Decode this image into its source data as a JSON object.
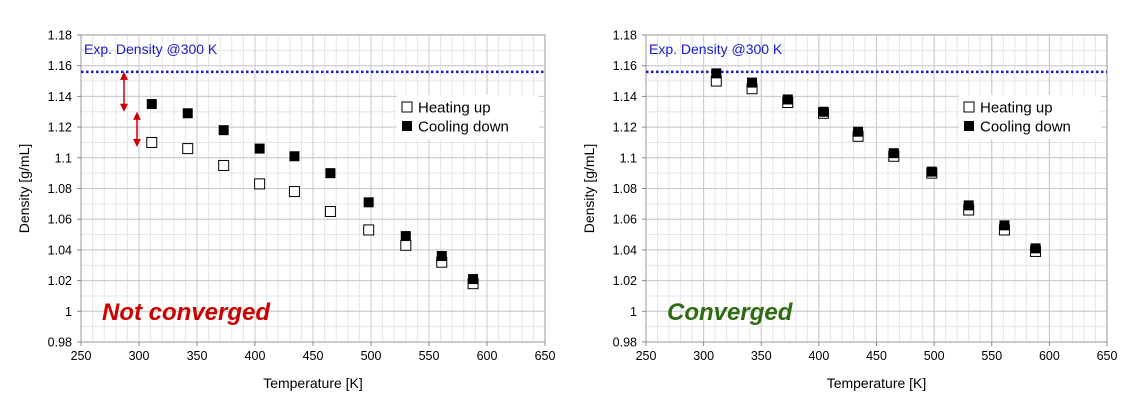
{
  "colors": {
    "reference_line": "#1a1acc",
    "not_converged": "#cc0000",
    "converged": "#2e6b12",
    "arrow": "#cc0000",
    "grid": "#c8c8c8"
  },
  "chart_data": [
    {
      "type": "scatter",
      "xlabel": "Temperature [K]",
      "ylabel": "Density [g/mL]",
      "xlim": [
        250,
        650
      ],
      "ylim": [
        0.98,
        1.18
      ],
      "x_ticks": [
        250,
        300,
        350,
        400,
        450,
        500,
        550,
        600,
        650
      ],
      "x_tick_labels": [
        "250",
        "300",
        "350",
        "400",
        "450",
        "500",
        "550",
        "600",
        "650"
      ],
      "y_ticks": [
        0.98,
        1.0,
        1.02,
        1.04,
        1.06,
        1.08,
        1.1,
        1.12,
        1.14,
        1.16,
        1.18
      ],
      "y_tick_labels": [
        "0.98",
        "1",
        "1.02",
        "1.04",
        "1.06",
        "1.08",
        "1.1",
        "1.12",
        "1.14",
        "1.16",
        "1.18"
      ],
      "grid": true,
      "legend_position": "top-right",
      "reference_line": {
        "y": 1.156,
        "label": "Exp. Density @300 K",
        "style": "dotted"
      },
      "status_label": "Not converged",
      "status_color": "not_converged",
      "annotation": "double-headed arrows indicating the gap below the experimental density",
      "series": [
        {
          "name": "Heating up",
          "marker": "open-square",
          "x": [
            311,
            342,
            373,
            404,
            434,
            465,
            498,
            530,
            561,
            588
          ],
          "y": [
            1.11,
            1.106,
            1.095,
            1.083,
            1.078,
            1.065,
            1.053,
            1.043,
            1.032,
            1.018
          ]
        },
        {
          "name": "Cooling down",
          "marker": "filled-square",
          "x": [
            311,
            342,
            373,
            404,
            434,
            465,
            498,
            530,
            561,
            588
          ],
          "y": [
            1.135,
            1.129,
            1.118,
            1.106,
            1.101,
            1.09,
            1.071,
            1.049,
            1.036,
            1.021
          ]
        }
      ]
    },
    {
      "type": "scatter",
      "xlabel": "Temperature [K]",
      "ylabel": "Density [g/mL]",
      "xlim": [
        250,
        650
      ],
      "ylim": [
        0.98,
        1.18
      ],
      "x_ticks": [
        250,
        300,
        350,
        400,
        450,
        500,
        550,
        600,
        650
      ],
      "x_tick_labels": [
        "250",
        "300",
        "350",
        "400",
        "450",
        "500",
        "550",
        "600",
        "650"
      ],
      "y_ticks": [
        0.98,
        1.0,
        1.02,
        1.04,
        1.06,
        1.08,
        1.1,
        1.12,
        1.14,
        1.16,
        1.18
      ],
      "y_tick_labels": [
        "0.98",
        "1",
        "1.02",
        "1.04",
        "1.06",
        "1.08",
        "1.1",
        "1.12",
        "1.14",
        "1.16",
        "1.18"
      ],
      "grid": true,
      "legend_position": "top-right",
      "reference_line": {
        "y": 1.156,
        "label": "Exp. Density @300 K",
        "style": "dotted"
      },
      "status_label": "Converged",
      "status_color": "converged",
      "series": [
        {
          "name": "Heating up",
          "marker": "open-square",
          "x": [
            311,
            342,
            373,
            404,
            434,
            465,
            498,
            530,
            561,
            588
          ],
          "y": [
            1.15,
            1.145,
            1.136,
            1.129,
            1.114,
            1.101,
            1.09,
            1.066,
            1.053,
            1.039
          ]
        },
        {
          "name": "Cooling down",
          "marker": "filled-square",
          "x": [
            311,
            342,
            373,
            404,
            434,
            465,
            498,
            530,
            561,
            588
          ],
          "y": [
            1.155,
            1.149,
            1.138,
            1.13,
            1.117,
            1.103,
            1.091,
            1.069,
            1.056,
            1.041
          ]
        }
      ]
    }
  ]
}
